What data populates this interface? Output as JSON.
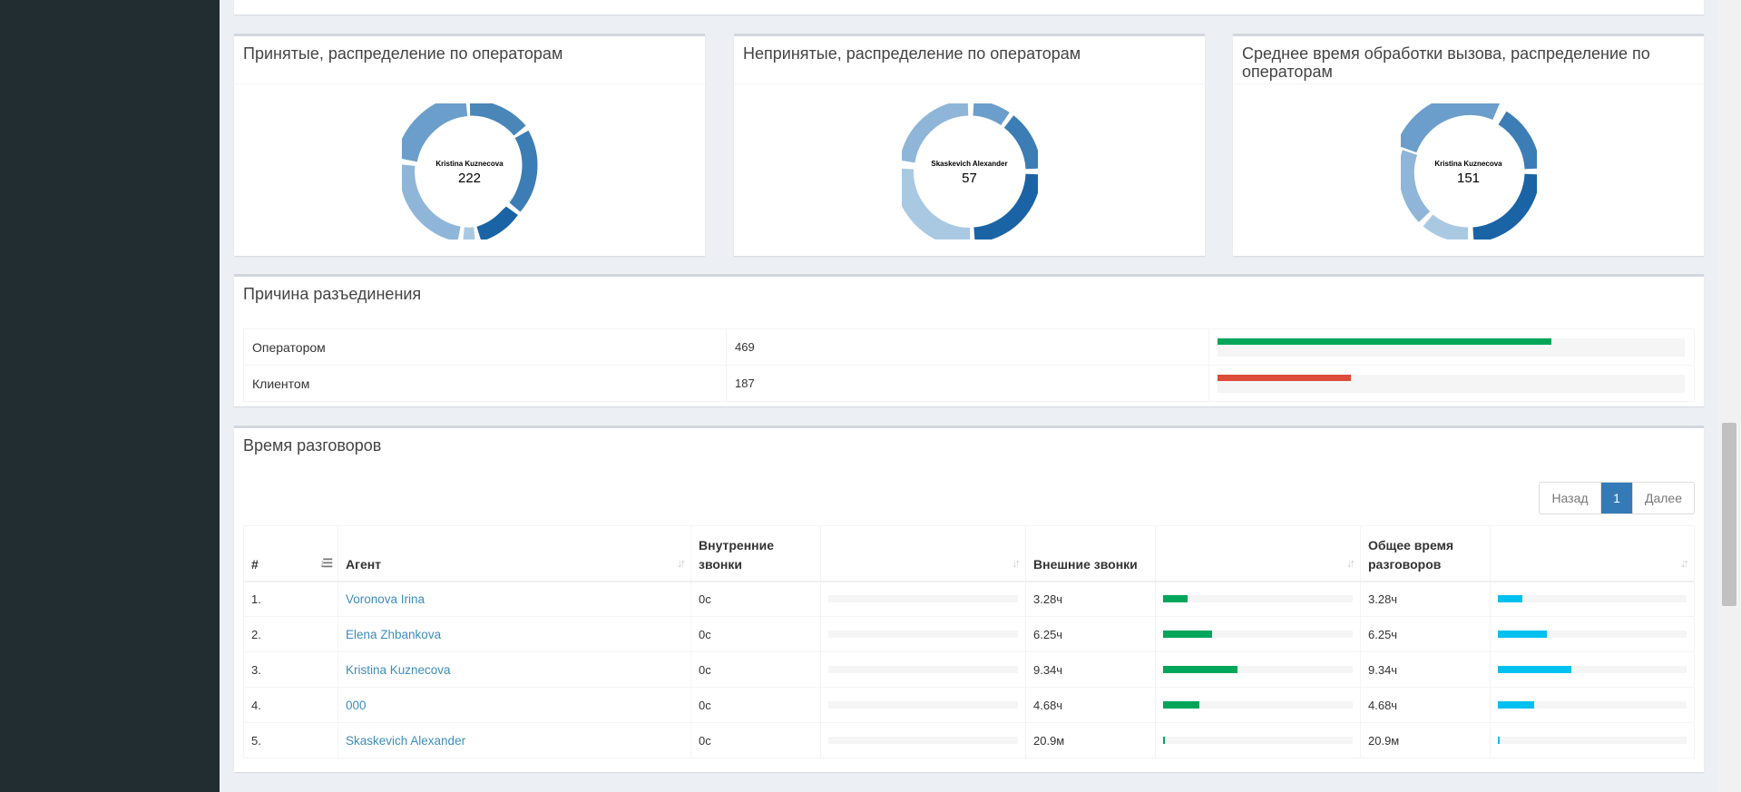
{
  "colors": {
    "sidebar": "#222d32",
    "green": "#00a65a",
    "red": "#dd4b39",
    "aqua": "#00c0ef",
    "blue": "#337ab7",
    "link": "#3c8dbc"
  },
  "donuts": [
    {
      "title": "Принятые, распределение по операторам",
      "center_name": "Kristina Kuznecova",
      "center_value": "222"
    },
    {
      "title": "Непринятые, распределение по операторам",
      "center_name": "Skaskevich Alexander",
      "center_value": "57"
    },
    {
      "title": "Среднее время обработки вызова, распределение по операторам",
      "center_name": "Kristina Kuznecova",
      "center_value": "151"
    }
  ],
  "reasons": {
    "title": "Причина разъединения",
    "rows": [
      {
        "label": "Оператором",
        "value": "469",
        "percent": 71.5,
        "color": "green"
      },
      {
        "label": "Клиентом",
        "value": "187",
        "percent": 28.5,
        "color": "red"
      }
    ]
  },
  "talk": {
    "title": "Время разговоров",
    "pager": {
      "prev": "Назад",
      "current": "1",
      "next": "Далее"
    },
    "headers": {
      "num": "#",
      "agent": "Агент",
      "internal": "Внутренние звонки",
      "external": "Внешние звонки",
      "total": "Общее время разговоров"
    },
    "icons": {
      "sort_active": "sort-amount-asc-icon",
      "sort": "sort-both-icon"
    },
    "rows": [
      {
        "num": "1.",
        "agent": "Voronova Irina",
        "internal": "0с",
        "internal_pct": 0,
        "external": "3.28ч",
        "external_pct": 13,
        "total": "3.28ч",
        "total_pct": 13
      },
      {
        "num": "2.",
        "agent": "Elena Zhbankova",
        "internal": "0с",
        "internal_pct": 0,
        "external": "6.25ч",
        "external_pct": 26,
        "total": "6.25ч",
        "total_pct": 26
      },
      {
        "num": "3.",
        "agent": "Kristina Kuznecova",
        "internal": "0с",
        "internal_pct": 0,
        "external": "9.34ч",
        "external_pct": 39,
        "total": "9.34ч",
        "total_pct": 39
      },
      {
        "num": "4.",
        "agent": "000",
        "internal": "0с",
        "internal_pct": 0,
        "external": "4.68ч",
        "external_pct": 19,
        "total": "4.68ч",
        "total_pct": 19
      },
      {
        "num": "5.",
        "agent": "Skaskevich Alexander",
        "internal": "0с",
        "internal_pct": 0,
        "external": "20.9м",
        "external_pct": 1,
        "total": "20.9м",
        "total_pct": 1
      }
    ]
  }
}
